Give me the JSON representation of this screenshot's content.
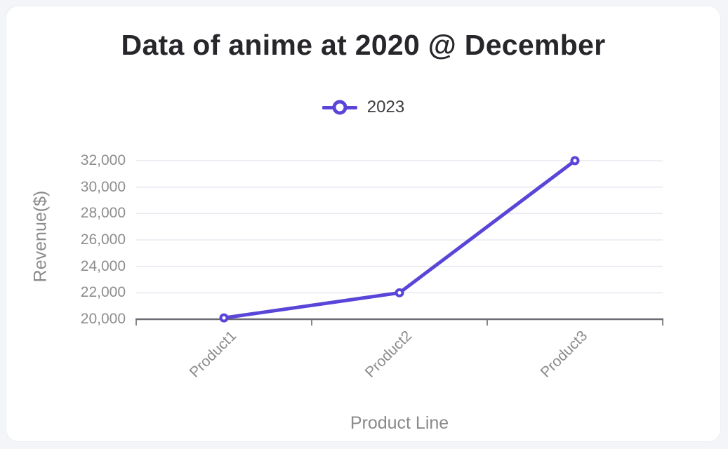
{
  "page": {
    "background_color": "#f4f5f8",
    "card_background_color": "#ffffff"
  },
  "chart": {
    "title": "Data of anime at 2020 @ December",
    "x_axis_title": "Product Line",
    "y_axis_title": "Revenue($)",
    "legend": {
      "items": [
        {
          "label": "2023",
          "color": "#5946d8",
          "marker": "open-circle-on-line"
        }
      ]
    }
  },
  "chart_data": {
    "type": "line",
    "title": "Data of anime at 2020 @ December",
    "categories": [
      "Product1",
      "Product2",
      "Product3"
    ],
    "series": [
      {
        "name": "2023",
        "values": [
          20100,
          22000,
          32000
        ],
        "color": "#5946d8",
        "marker": "open-circle"
      }
    ],
    "xlabel": "Product Line",
    "ylabel": "Revenue($)",
    "ylim": [
      20000,
      32000
    ],
    "ytick_step": 2000,
    "yticks": [
      20000,
      22000,
      24000,
      26000,
      28000,
      30000,
      32000
    ],
    "ytick_labels": [
      "20,000",
      "22,000",
      "24,000",
      "26,000",
      "28,000",
      "30,000",
      "32,000"
    ],
    "grid": true,
    "legend_position": "top",
    "colors": {
      "line": "#5946d8",
      "grid_line": "#e9e9f2",
      "axis_line": "#6b6b73",
      "tick_text": "#8d8d8d",
      "axis_title_text": "#8a8a8a",
      "title_text": "#26262b",
      "legend_text": "#3c3c40"
    }
  }
}
